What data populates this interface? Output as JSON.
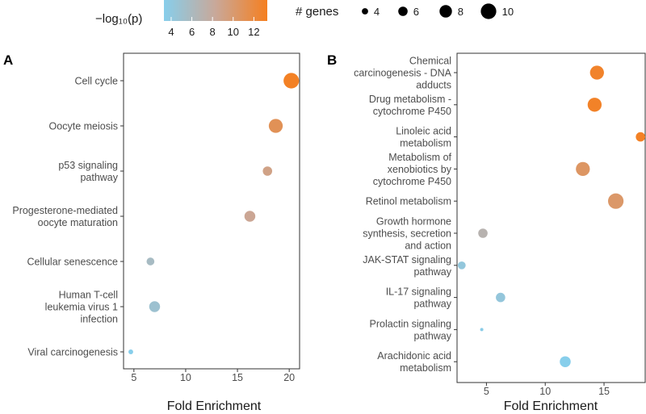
{
  "legend": {
    "color_title": "−log₁₀(p)",
    "color_ticks": [
      4,
      6,
      8,
      10,
      12
    ],
    "color_low": "#87CEEB",
    "color_high": "#F57F20",
    "size_title": "# genes",
    "size_ticks": [
      4,
      6,
      8,
      10
    ]
  },
  "chart_data": [
    {
      "type": "scatter",
      "panel_label": "A",
      "xlabel": "Fold Enrichment",
      "xlim": [
        4,
        21
      ],
      "xticks": [
        5,
        10,
        15,
        20
      ],
      "categories": [
        "Cell cycle",
        "Oocyte meiosis",
        "p53 signaling\npathway",
        "Progesterone-mediated\noocyte maturation",
        "Cellular senescence",
        "Human T-cell\nleukemia virus 1\ninfection",
        "Viral carcinogenesis"
      ],
      "fold_enrichment": [
        20.2,
        18.7,
        17.9,
        16.2,
        6.6,
        7.0,
        4.7
      ],
      "neg_log10_p": [
        12.8,
        11.0,
        9.2,
        8.7,
        6.2,
        5.5,
        4.0
      ],
      "gene_count": [
        10,
        9,
        6,
        7,
        5,
        7,
        3
      ]
    },
    {
      "type": "scatter",
      "panel_label": "B",
      "xlabel": "Fold Enrichment",
      "xlim": [
        2.5,
        18.5
      ],
      "xticks": [
        5,
        10,
        15
      ],
      "categories": [
        "Chemical\ncarcinogenesis - DNA\nadducts",
        "Drug metabolism -\ncytochrome P450",
        "Linoleic acid\nmetabolism",
        "Metabolism of\nxenobiotics by\ncytochrome P450",
        "Retinol metabolism",
        "Growth hormone\nsynthesis, secretion\nand action",
        "JAK-STAT signaling\npathway",
        "IL-17 signaling\npathway",
        "Prolactin signaling\npathway",
        "Arachidonic acid\nmetabolism"
      ],
      "fold_enrichment": [
        14.4,
        14.2,
        18.1,
        13.2,
        16.0,
        4.7,
        2.9,
        6.2,
        4.6,
        11.7
      ],
      "neg_log10_p": [
        12.6,
        12.7,
        12.8,
        10.5,
        10.3,
        7.3,
        4.8,
        4.9,
        4.2,
        4.0
      ],
      "gene_count": [
        9,
        9,
        6,
        9,
        10,
        6,
        5,
        6,
        2,
        7
      ]
    }
  ]
}
